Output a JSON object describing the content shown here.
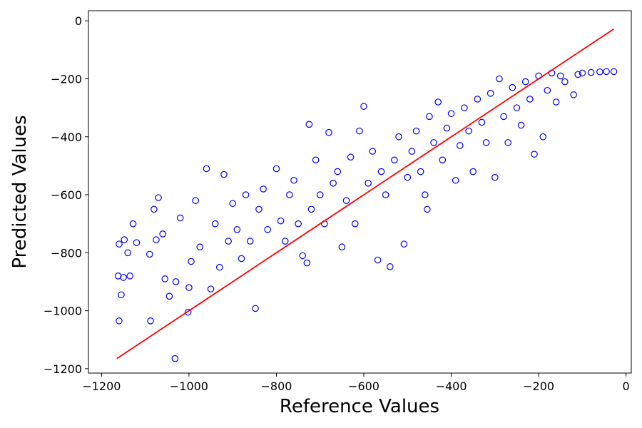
{
  "chart_data": {
    "type": "scatter",
    "title": "",
    "xlabel": "Reference Values",
    "ylabel": "Predicted Values",
    "xlim": [
      -1230,
      12
    ],
    "ylim": [
      -1215,
      35
    ],
    "x_ticks": [
      -1200,
      -1000,
      -800,
      -600,
      -400,
      -200,
      0
    ],
    "y_ticks": [
      -1200,
      -1000,
      -800,
      -600,
      -400,
      -200,
      0
    ],
    "x_tick_labels": [
      "−1200",
      "−1000",
      "−800",
      "−600",
      "−400",
      "−200",
      "0"
    ],
    "y_tick_labels": [
      "−1200",
      "−1000",
      "−800",
      "−600",
      "−400",
      "−200",
      "0"
    ],
    "grid": false,
    "legend": "none",
    "colors": {
      "points": "#0000ff",
      "reference_line": "#ff0000",
      "axes": "#000000"
    },
    "reference_line": {
      "x": [
        -1165,
        -28
      ],
      "y": [
        -1165,
        -28
      ]
    },
    "points_note": "several thousand hollow blue circles; representative sample listed below",
    "points": [
      {
        "x": -1160,
        "y": -1035
      },
      {
        "x": -1162,
        "y": -880
      },
      {
        "x": -1155,
        "y": -945
      },
      {
        "x": -1150,
        "y": -885
      },
      {
        "x": -1148,
        "y": -755
      },
      {
        "x": -1140,
        "y": -800
      },
      {
        "x": -1135,
        "y": -880
      },
      {
        "x": -1128,
        "y": -700
      },
      {
        "x": -1120,
        "y": -765
      },
      {
        "x": -1160,
        "y": -770
      },
      {
        "x": -1088,
        "y": -1035
      },
      {
        "x": -1090,
        "y": -805
      },
      {
        "x": -1080,
        "y": -650
      },
      {
        "x": -1075,
        "y": -755
      },
      {
        "x": -1070,
        "y": -610
      },
      {
        "x": -1060,
        "y": -735
      },
      {
        "x": -1055,
        "y": -890
      },
      {
        "x": -1045,
        "y": -950
      },
      {
        "x": -1032,
        "y": -1165
      },
      {
        "x": -1030,
        "y": -900
      },
      {
        "x": -1020,
        "y": -680
      },
      {
        "x": -1002,
        "y": -1005
      },
      {
        "x": -1000,
        "y": -920
      },
      {
        "x": -995,
        "y": -830
      },
      {
        "x": -985,
        "y": -620
      },
      {
        "x": -975,
        "y": -780
      },
      {
        "x": -960,
        "y": -510
      },
      {
        "x": -950,
        "y": -925
      },
      {
        "x": -940,
        "y": -700
      },
      {
        "x": -930,
        "y": -850
      },
      {
        "x": -920,
        "y": -530
      },
      {
        "x": -910,
        "y": -760
      },
      {
        "x": -900,
        "y": -630
      },
      {
        "x": -890,
        "y": -720
      },
      {
        "x": -880,
        "y": -820
      },
      {
        "x": -870,
        "y": -600
      },
      {
        "x": -860,
        "y": -760
      },
      {
        "x": -848,
        "y": -992
      },
      {
        "x": -840,
        "y": -650
      },
      {
        "x": -830,
        "y": -580
      },
      {
        "x": -820,
        "y": -720
      },
      {
        "x": -800,
        "y": -510
      },
      {
        "x": -790,
        "y": -690
      },
      {
        "x": -780,
        "y": -760
      },
      {
        "x": -770,
        "y": -600
      },
      {
        "x": -760,
        "y": -550
      },
      {
        "x": -750,
        "y": -700
      },
      {
        "x": -740,
        "y": -810
      },
      {
        "x": -730,
        "y": -835
      },
      {
        "x": -725,
        "y": -357
      },
      {
        "x": -720,
        "y": -650
      },
      {
        "x": -710,
        "y": -480
      },
      {
        "x": -700,
        "y": -600
      },
      {
        "x": -690,
        "y": -700
      },
      {
        "x": -680,
        "y": -385
      },
      {
        "x": -670,
        "y": -560
      },
      {
        "x": -660,
        "y": -520
      },
      {
        "x": -650,
        "y": -780
      },
      {
        "x": -640,
        "y": -620
      },
      {
        "x": -630,
        "y": -470
      },
      {
        "x": -620,
        "y": -700
      },
      {
        "x": -610,
        "y": -380
      },
      {
        "x": -600,
        "y": -295
      },
      {
        "x": -590,
        "y": -560
      },
      {
        "x": -580,
        "y": -450
      },
      {
        "x": -568,
        "y": -825
      },
      {
        "x": -560,
        "y": -520
      },
      {
        "x": -550,
        "y": -600
      },
      {
        "x": -540,
        "y": -848
      },
      {
        "x": -530,
        "y": -480
      },
      {
        "x": -520,
        "y": -400
      },
      {
        "x": -508,
        "y": -770
      },
      {
        "x": -500,
        "y": -540
      },
      {
        "x": -490,
        "y": -450
      },
      {
        "x": -480,
        "y": -380
      },
      {
        "x": -470,
        "y": -520
      },
      {
        "x": -460,
        "y": -600
      },
      {
        "x": -455,
        "y": -650
      },
      {
        "x": -450,
        "y": -330
      },
      {
        "x": -440,
        "y": -420
      },
      {
        "x": -430,
        "y": -280
      },
      {
        "x": -420,
        "y": -480
      },
      {
        "x": -410,
        "y": -370
      },
      {
        "x": -400,
        "y": -320
      },
      {
        "x": -390,
        "y": -550
      },
      {
        "x": -380,
        "y": -430
      },
      {
        "x": -370,
        "y": -300
      },
      {
        "x": -360,
        "y": -380
      },
      {
        "x": -350,
        "y": -520
      },
      {
        "x": -340,
        "y": -270
      },
      {
        "x": -330,
        "y": -350
      },
      {
        "x": -320,
        "y": -420
      },
      {
        "x": -310,
        "y": -250
      },
      {
        "x": -300,
        "y": -540
      },
      {
        "x": -290,
        "y": -200
      },
      {
        "x": -280,
        "y": -330
      },
      {
        "x": -270,
        "y": -420
      },
      {
        "x": -260,
        "y": -230
      },
      {
        "x": -250,
        "y": -300
      },
      {
        "x": -240,
        "y": -360
      },
      {
        "x": -230,
        "y": -210
      },
      {
        "x": -220,
        "y": -270
      },
      {
        "x": -210,
        "y": -460
      },
      {
        "x": -200,
        "y": -190
      },
      {
        "x": -190,
        "y": -400
      },
      {
        "x": -180,
        "y": -240
      },
      {
        "x": -170,
        "y": -180
      },
      {
        "x": -160,
        "y": -280
      },
      {
        "x": -150,
        "y": -190
      },
      {
        "x": -140,
        "y": -210
      },
      {
        "x": -120,
        "y": -255
      },
      {
        "x": -110,
        "y": -185
      },
      {
        "x": -100,
        "y": -180
      },
      {
        "x": -80,
        "y": -178
      },
      {
        "x": -60,
        "y": -176
      },
      {
        "x": -45,
        "y": -175
      },
      {
        "x": -28,
        "y": -175
      }
    ]
  }
}
